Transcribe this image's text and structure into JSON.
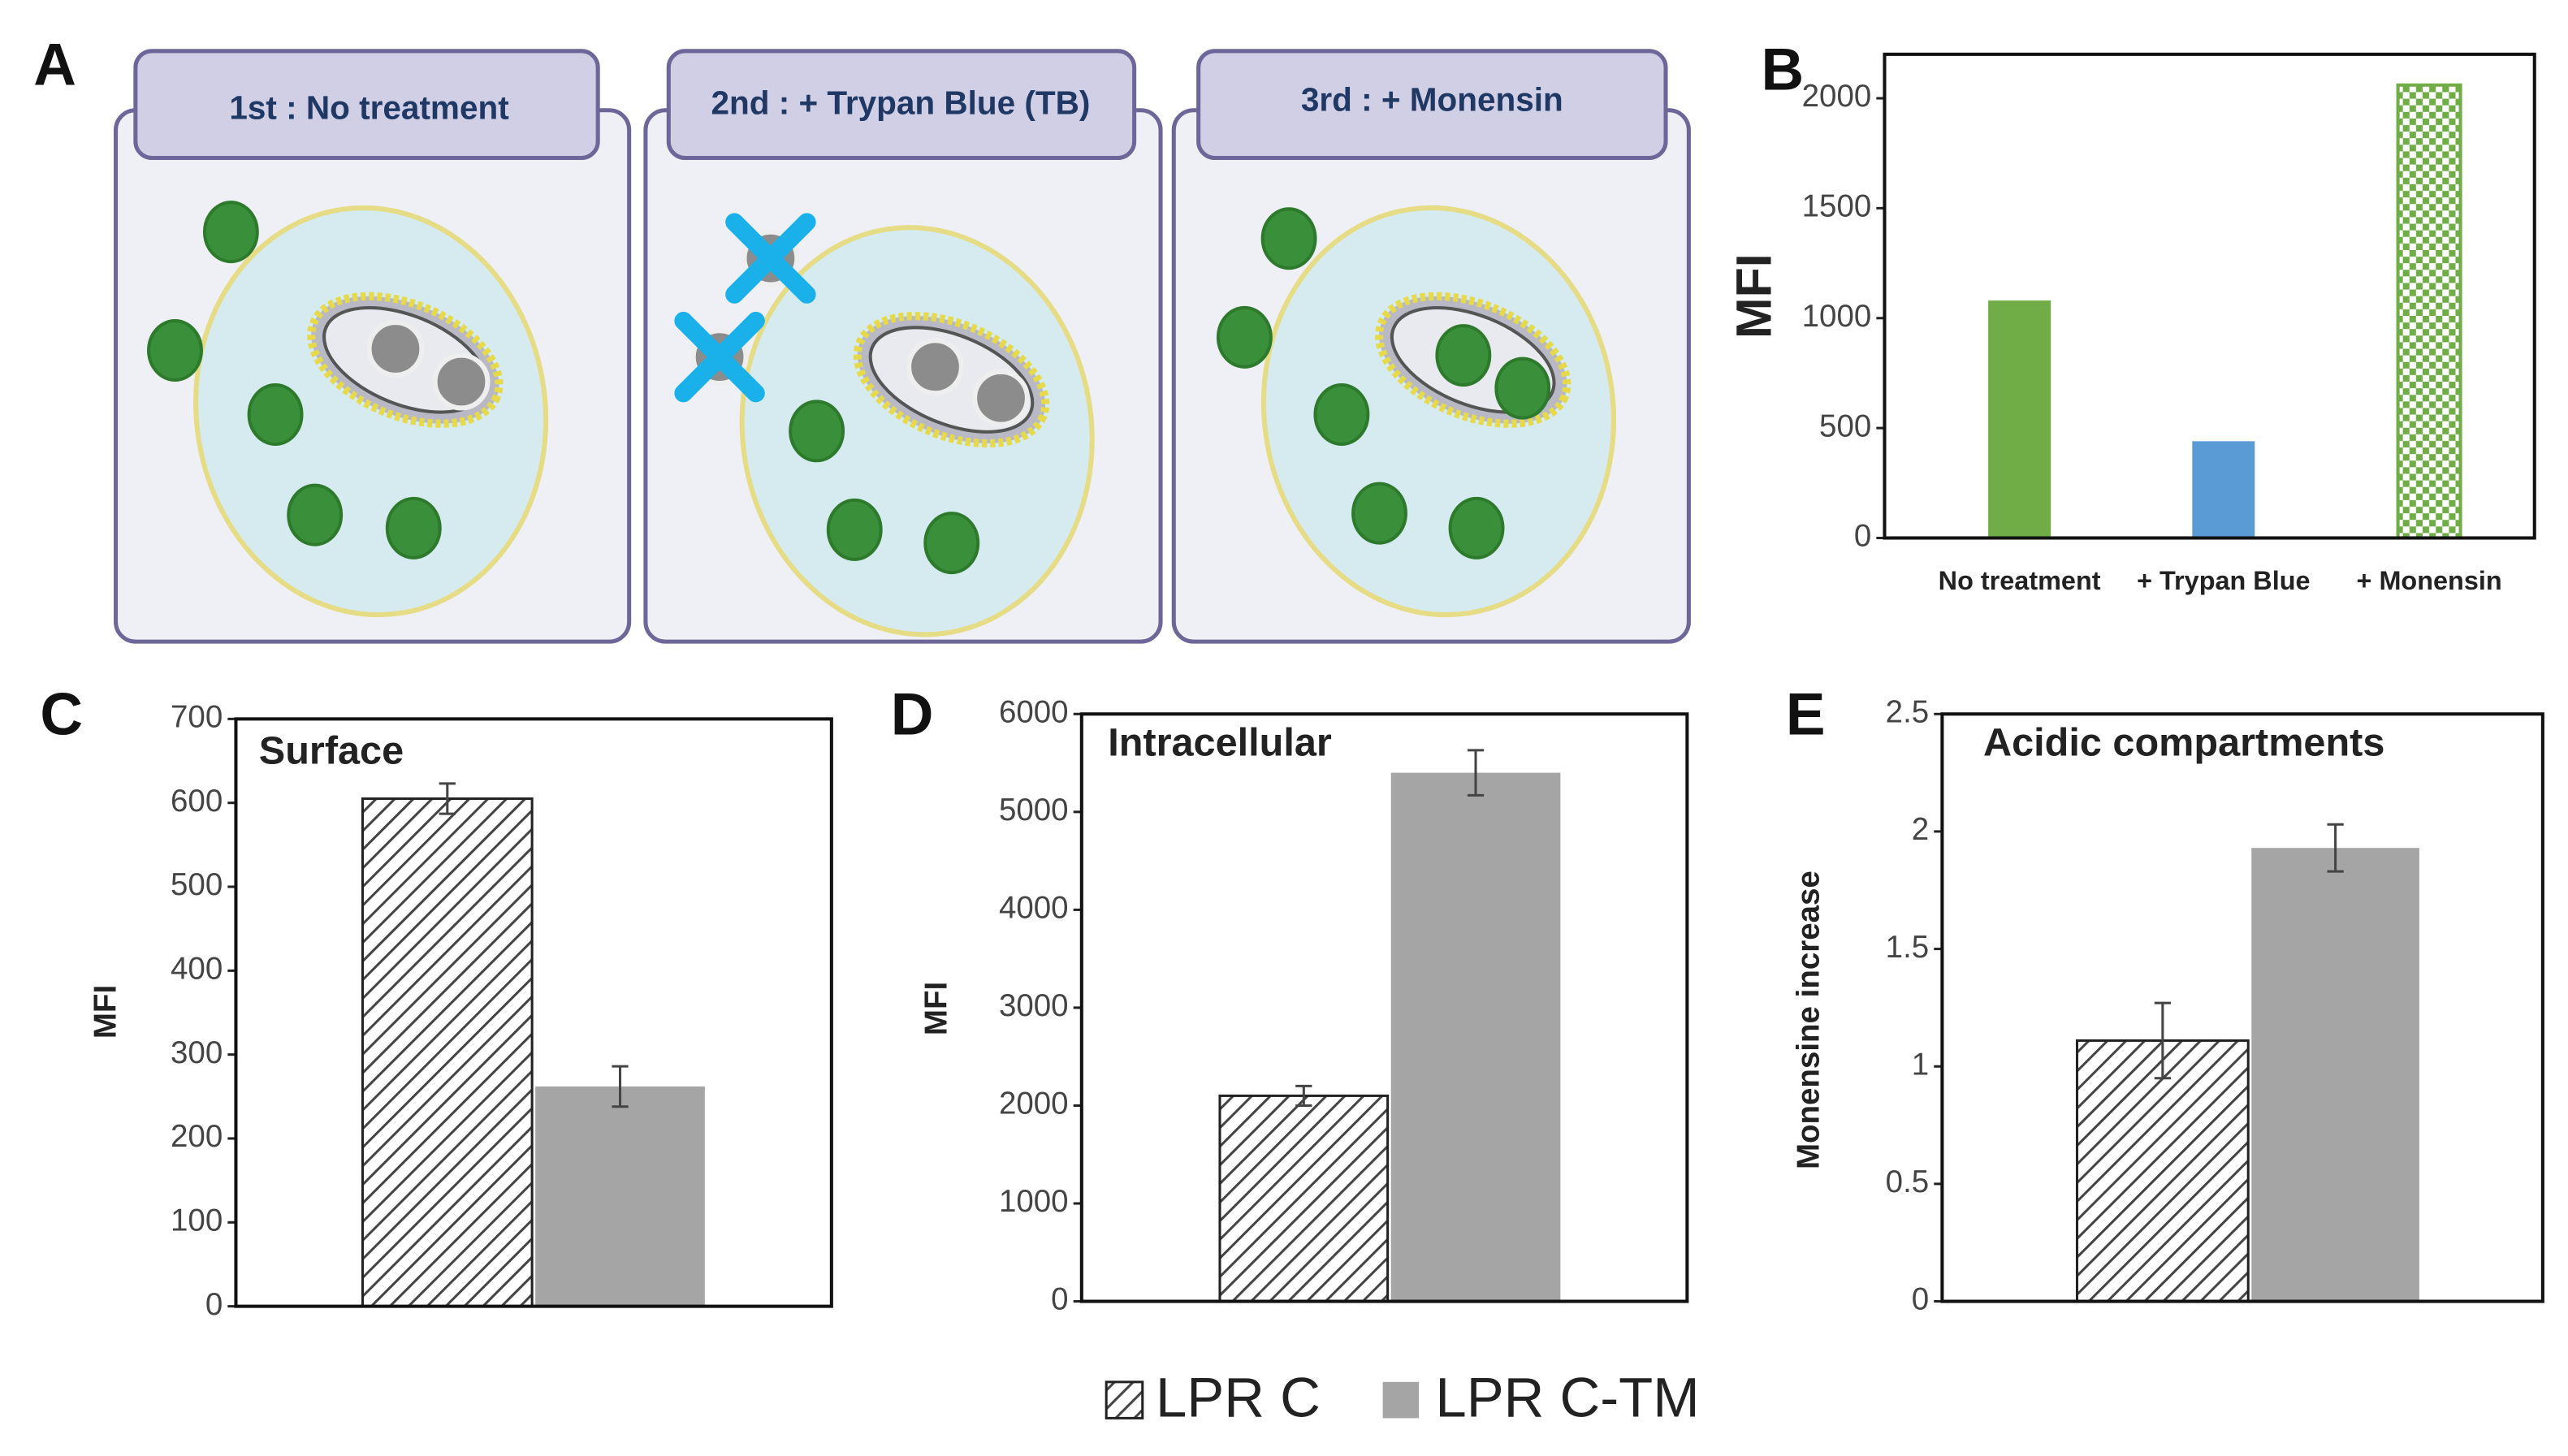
{
  "diagram": {
    "label": "A",
    "steps": [
      "1st : No treatment",
      "2nd : + Trypan Blue (TB)",
      "3rd : + Monensin"
    ]
  },
  "chart_data": [
    {
      "type": "bar",
      "label": "B",
      "ylabel": "MFI",
      "categories": [
        "No treatment",
        "+ Trypan Blue",
        "+ Monensin"
      ],
      "values": [
        1080,
        440,
        2060
      ],
      "colors": [
        "#70ad47",
        "#5b9bd5",
        "#70ad47"
      ],
      "fills": [
        "solid",
        "solid",
        "checker"
      ],
      "ylim": [
        0,
        2200
      ],
      "yticks": [
        0,
        500,
        1000,
        1500,
        2000
      ]
    },
    {
      "type": "bar",
      "label": "C",
      "title": "Surface",
      "ylabel": "MFI",
      "series": [
        {
          "values": [
            605
          ],
          "errors": [
            18
          ]
        },
        {
          "values": [
            262
          ],
          "errors": [
            24
          ]
        }
      ],
      "ylim": [
        0,
        700
      ],
      "yticks": [
        0,
        100,
        200,
        300,
        400,
        500,
        600,
        700
      ]
    },
    {
      "type": "bar",
      "label": "D",
      "title": "Intracellular",
      "ylabel": "MFI",
      "series": [
        {
          "values": [
            2100
          ],
          "errors": [
            100
          ]
        },
        {
          "values": [
            5400
          ],
          "errors": [
            230
          ]
        }
      ],
      "ylim": [
        0,
        6000
      ],
      "yticks": [
        0,
        1000,
        2000,
        3000,
        4000,
        5000,
        6000
      ]
    },
    {
      "type": "bar",
      "label": "E",
      "title": "Acidic compartments",
      "ylabel": "Monensine increase",
      "series": [
        {
          "values": [
            1.11
          ],
          "errors": [
            0.16
          ]
        },
        {
          "values": [
            1.93
          ],
          "errors": [
            0.1
          ]
        }
      ],
      "ylim": [
        0,
        2.5
      ],
      "yticks": [
        0,
        0.5,
        1,
        1.5,
        2,
        2.5
      ]
    }
  ],
  "legend": [
    {
      "name": "LPR C",
      "pattern": "hatch"
    },
    {
      "name": "LPR C-TM",
      "color": "#a5a5a5"
    }
  ]
}
